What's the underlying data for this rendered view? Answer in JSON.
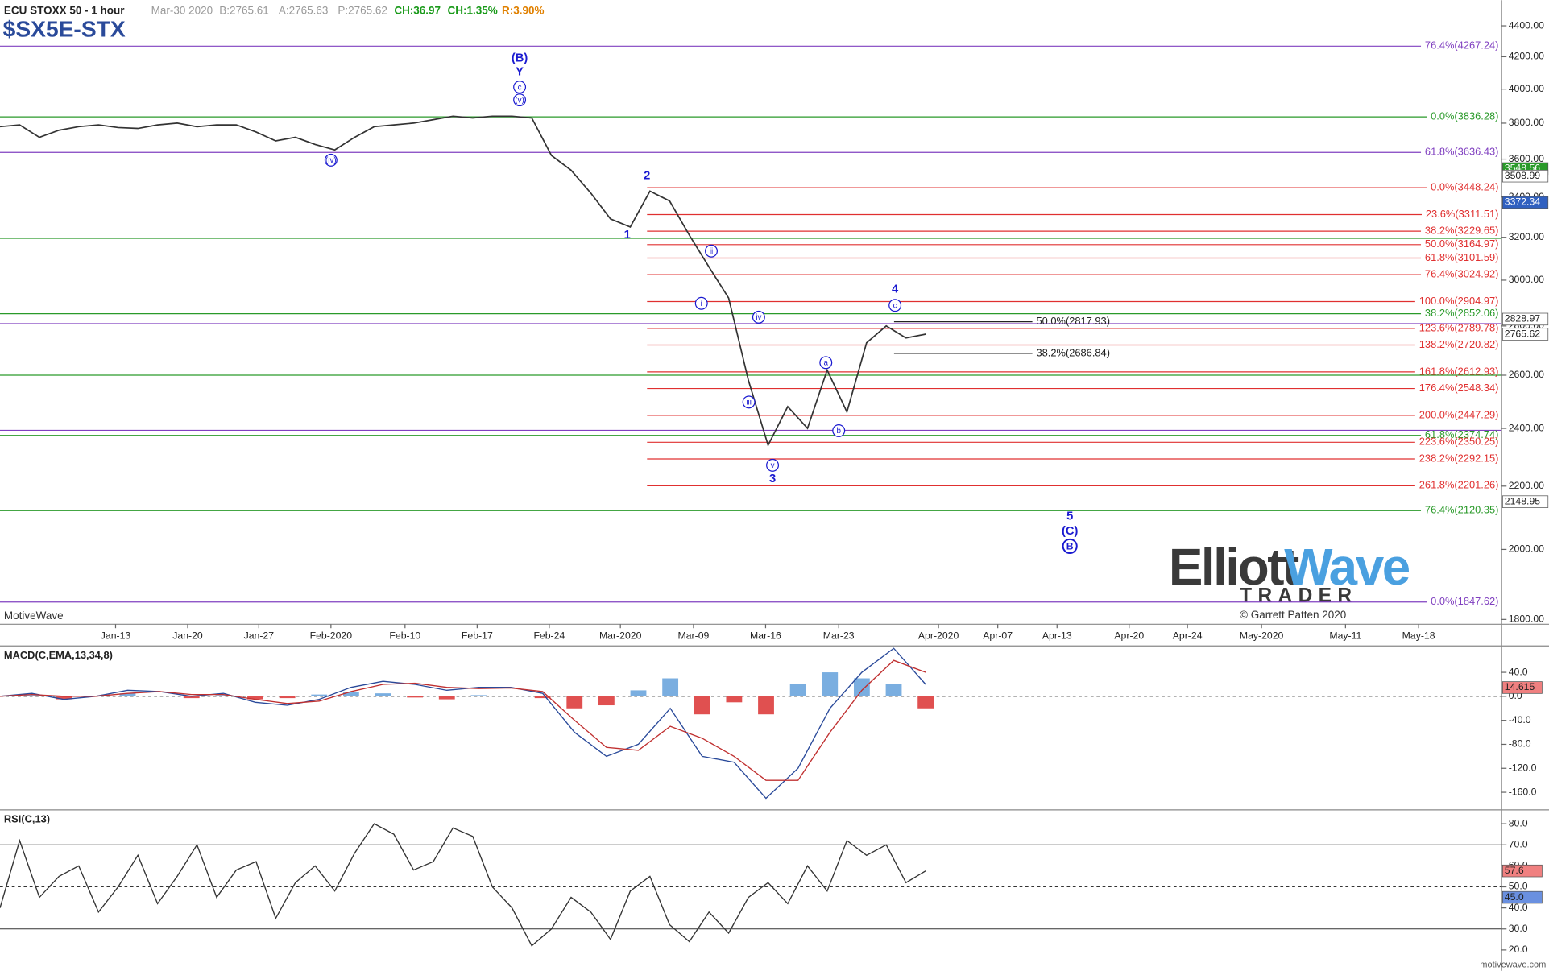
{
  "header": {
    "symbol_title": "ECU STOXX 50 - 1 hour",
    "date": "Mar-30 2020",
    "bid": "B:2765.61",
    "ask": "A:2765.63",
    "price": "P:2765.62",
    "change": "CH:36.97",
    "change_pct": "CH:1.35%",
    "range": "R:3.90%",
    "ticker": "$SX5E-STX"
  },
  "footer": {
    "left": "MotiveWave",
    "copyright": "© Garrett Patten 2020",
    "site": "motivewave.com"
  },
  "logo": {
    "word1": "Elliott",
    "word2": "Wave",
    "sub": "TRADER"
  },
  "chart_data": [
    {
      "type": "line",
      "color": "#333333",
      "log_scale": true,
      "values": [
        3780,
        3790,
        3720,
        3760,
        3780,
        3790,
        3775,
        3770,
        3790,
        3800,
        3780,
        3790,
        3790,
        3750,
        3700,
        3720,
        3680,
        3650,
        3720,
        3780,
        3790,
        3800,
        3820,
        3840,
        3830,
        3840,
        3840,
        3830,
        3620,
        3540,
        3420,
        3290,
        3250,
        3430,
        3380,
        3210,
        3060,
        2920,
        2580,
        2340,
        2480,
        2400,
        2620,
        2460,
        2730,
        2800,
        2750,
        2766
      ],
      "ylim": [
        1787,
        4573
      ],
      "yticks": [
        {
          "value": 4400,
          "label": "4400.00"
        },
        {
          "value": 4200,
          "label": "4200.00"
        },
        {
          "value": 4000,
          "label": "4000.00"
        },
        {
          "value": 3800,
          "label": "3800.00"
        },
        {
          "value": 3600,
          "label": "3600.00"
        },
        {
          "value": 3400,
          "label": "3400.00"
        },
        {
          "value": 3200,
          "label": "3200.00"
        },
        {
          "value": 3000,
          "label": "3000.00"
        },
        {
          "value": 2800,
          "label": "2800.00"
        },
        {
          "value": 2600,
          "label": "2600.00"
        },
        {
          "value": 2400,
          "label": "2400.00"
        },
        {
          "value": 2200,
          "label": "2200.00"
        },
        {
          "value": 2000,
          "label": "2000.00"
        },
        {
          "value": 1800,
          "label": "1800.00"
        }
      ],
      "xtick_labels": [
        "Jan-13",
        "Jan-20",
        "Jan-27",
        "Feb-2020",
        "Feb-10",
        "Feb-17",
        "Feb-24",
        "Mar-2020",
        "Mar-09",
        "Mar-16",
        "Mar-23",
        "Apr-2020",
        "Apr-07",
        "Apr-13",
        "Apr-20",
        "Apr-24",
        "May-2020",
        "May-11",
        "May-18"
      ],
      "fib_long": [
        {
          "label": "76.4%(4267.24)",
          "value": 4267.24,
          "color": "#8040c0"
        },
        {
          "label": "0.0%(3836.28)",
          "value": 3836.28,
          "color": "#2a9a2a"
        },
        {
          "label": "61.8%(3636.43)",
          "value": 3636.43,
          "color": "#8040c0"
        },
        {
          "value": 3195,
          "color": "#2a9a2a"
        },
        {
          "label": "38.2%(2852.06)",
          "value": 2852.06,
          "color": "#2a9a2a"
        },
        {
          "value": 2810,
          "color": "#8040c0"
        },
        {
          "value": 2600,
          "color": "#2a9a2a"
        },
        {
          "value": 2393,
          "color": "#8040c0"
        },
        {
          "label": "61.8%(2374.74)",
          "value": 2374.74,
          "color": "#2a9a2a"
        },
        {
          "label": "76.4%(2120.35)",
          "value": 2120.35,
          "color": "#2a9a2a"
        },
        {
          "label": "0.0%(1847.62)",
          "value": 1847.62,
          "color": "#8040c0"
        }
      ],
      "fib_red_color": "#e03030",
      "fib_red": [
        {
          "label": "0.0%(3448.24)",
          "value": 3448.24
        },
        {
          "label": "23.6%(3311.51)",
          "value": 3311.51
        },
        {
          "label": "38.2%(3229.65)",
          "value": 3229.65
        },
        {
          "label": "50.0%(3164.97)",
          "value": 3164.97
        },
        {
          "label": "61.8%(3101.59)",
          "value": 3101.59
        },
        {
          "label": "76.4%(3024.92)",
          "value": 3024.92
        },
        {
          "label": "100.0%(2904.97)",
          "value": 2904.97
        },
        {
          "label": "123.6%(2789.78)",
          "value": 2789.78
        },
        {
          "label": "138.2%(2720.82)",
          "value": 2720.82
        },
        {
          "label": "161.8%(2612.93)",
          "value": 2612.93
        },
        {
          "label": "176.4%(2548.34)",
          "value": 2548.34
        },
        {
          "label": "200.0%(2447.29)",
          "value": 2447.29
        },
        {
          "label": "223.6%(2350.25)",
          "value": 2350.25
        },
        {
          "label": "238.2%(2292.15)",
          "value": 2292.15
        },
        {
          "label": "261.8%(2201.26)",
          "value": 2201.26
        }
      ],
      "fib_short": [
        {
          "label": "50.0%(2817.93)",
          "value": 2817.93
        },
        {
          "label": "38.2%(2686.84)",
          "value": 2686.84
        }
      ],
      "price_boxes": [
        {
          "value": 3548.56,
          "color": "#2a9a2a"
        },
        {
          "value": 3508.99,
          "color": "#ffffff"
        },
        {
          "value": 3372.34,
          "color": "#3060c0"
        },
        {
          "value": 2828.97,
          "color": "#ffffff"
        },
        {
          "value": 2765.62,
          "color": "#ffffff"
        },
        {
          "value": 2148.95,
          "color": "#ffffff"
        }
      ],
      "wave_labels": [
        "(B)",
        "Y",
        "2",
        "1",
        "3",
        "4",
        "5",
        "(C)"
      ],
      "circled_labels": [
        "c",
        "(v)",
        "(iv)",
        "ii",
        "i",
        "iv",
        "iii",
        "v",
        "a",
        "b",
        "c",
        "B"
      ]
    },
    {
      "type": "macd",
      "title": "MACD(C,EMA,13,34,8)",
      "series": [
        {
          "color": "#2a4a9a",
          "values": [
            0,
            5,
            -5,
            0,
            10,
            8,
            0,
            5,
            -10,
            -15,
            -5,
            15,
            25,
            20,
            10,
            15,
            15,
            5,
            -60,
            -100,
            -80,
            -20,
            -100,
            -110,
            -170,
            -120,
            -20,
            40,
            80,
            20
          ]
        },
        {
          "color": "#c03030",
          "values": [
            0,
            3,
            0,
            0,
            5,
            8,
            3,
            3,
            -5,
            -12,
            -8,
            8,
            20,
            22,
            15,
            13,
            14,
            8,
            -40,
            -85,
            -90,
            -50,
            -70,
            -100,
            -140,
            -140,
            -60,
            10,
            60,
            40
          ]
        }
      ],
      "histogram": [
        0,
        2,
        -5,
        0,
        5,
        0,
        -3,
        2,
        -5,
        -3,
        3,
        7,
        5,
        -2,
        -5,
        2,
        1,
        -3,
        -20,
        -15,
        10,
        30,
        -30,
        -10,
        -30,
        20,
        40,
        30,
        20,
        -20
      ],
      "pos_color": "#7aaee0",
      "neg_color": "#e05050",
      "ylim": [
        -186,
        84
      ],
      "yticks": [
        {
          "value": 40,
          "label": "40.0"
        },
        {
          "value": 0,
          "label": "0.0"
        },
        {
          "value": -40,
          "label": "-40.0"
        },
        {
          "value": -80,
          "label": "-80.0"
        },
        {
          "value": -120,
          "label": "-120.0"
        },
        {
          "value": -160,
          "label": "-160.0"
        }
      ],
      "ref_lines": [
        0
      ],
      "value_boxes": [
        {
          "value": 14.615,
          "color": "#f08080"
        }
      ]
    },
    {
      "type": "rsi",
      "title": "RSI(C,13)",
      "color": "#333333",
      "values": [
        40,
        72,
        45,
        55,
        60,
        38,
        50,
        65,
        42,
        55,
        70,
        45,
        58,
        62,
        35,
        52,
        60,
        48,
        66,
        80,
        75,
        58,
        62,
        78,
        74,
        50,
        40,
        22,
        30,
        45,
        38,
        25,
        48,
        55,
        32,
        24,
        38,
        28,
        45,
        52,
        42,
        60,
        48,
        72,
        65,
        70,
        52,
        57.6
      ],
      "ylim": [
        11.5,
        86.6
      ],
      "yticks": [
        {
          "value": 80,
          "label": "80.0"
        },
        {
          "value": 70,
          "label": "70.0"
        },
        {
          "value": 60,
          "label": "60.0"
        },
        {
          "value": 50,
          "label": "50.0"
        },
        {
          "value": 40,
          "label": "40.0"
        },
        {
          "value": 30,
          "label": "30.0"
        },
        {
          "value": 20,
          "label": "20.0"
        }
      ],
      "ref_lines": [
        70,
        50,
        30
      ],
      "value_boxes": [
        {
          "value": 57.6,
          "label": "57.6",
          "color": "#f08080"
        },
        {
          "value": 45,
          "label": "45.0",
          "color": "#6a90e0"
        }
      ]
    }
  ]
}
